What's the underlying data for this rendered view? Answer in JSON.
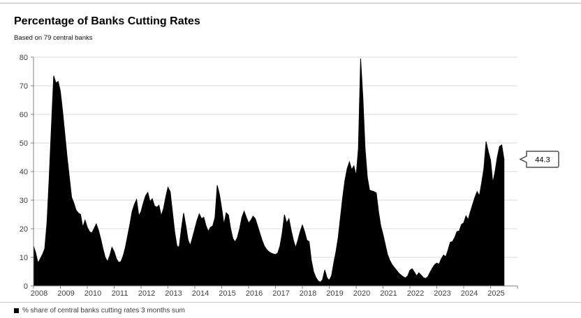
{
  "chart": {
    "title": "Percentage of Banks Cutting Rates",
    "subtitle": "Based on 79 central banks",
    "legend_label": "% share of central banks cutting rates 3 months sum",
    "callout_label": "44.3"
  },
  "colors": {
    "series": "#000000",
    "grid": "#d9d9d9",
    "axis": "#808080",
    "tick_text": "#404040",
    "callout_border": "#4d4d4d",
    "callout_bg": "#ffffff",
    "callout_text": "#000000"
  },
  "chart_data": {
    "type": "area",
    "title": "Percentage of Banks Cutting Rates",
    "subtitle": "Based on 79 central banks",
    "legend": [
      "% share of central banks cutting rates 3 months sum"
    ],
    "legend_position": "bottom-left",
    "grid": "horizontal",
    "x_start": "2008-01",
    "x_end": "2025-07",
    "frequency": "monthly",
    "x_tick_labels": [
      "2008",
      "2009",
      "2010",
      "2011",
      "2012",
      "2013",
      "2014",
      "2015",
      "2016",
      "2017",
      "2018",
      "2019",
      "2020",
      "2021",
      "2022",
      "2023",
      "2024",
      "2025"
    ],
    "ylim": [
      0,
      80
    ],
    "y_ticks": [
      0,
      10,
      20,
      30,
      40,
      50,
      60,
      70,
      80
    ],
    "annotation": {
      "label": "44.3",
      "value": 44.3,
      "position": "last-point"
    },
    "series": [
      {
        "name": "% share of central banks cutting rates 3 months sum",
        "color": "#000000",
        "values": [
          14,
          11.5,
          8,
          9.5,
          11,
          13,
          22,
          38,
          56,
          73.5,
          71,
          71.5,
          68,
          61,
          53,
          45,
          38,
          31,
          29,
          26.5,
          25.5,
          25,
          20.5,
          23,
          20.5,
          19,
          18.5,
          20,
          21.7,
          19.5,
          16.5,
          13,
          10,
          8.5,
          10.5,
          13.5,
          12,
          9.5,
          8.2,
          8.5,
          10.5,
          13.5,
          17.5,
          21.5,
          26,
          28.5,
          30.2,
          24.5,
          26,
          29,
          31.5,
          32.7,
          29.5,
          30.5,
          28,
          27.5,
          28.2,
          24.5,
          27,
          31,
          34.5,
          33,
          26,
          19,
          14,
          13.5,
          20,
          25.5,
          21,
          16,
          14.2,
          17,
          20,
          23,
          25.2,
          23.5,
          24,
          21,
          19.1,
          20.5,
          21,
          24,
          35.2,
          32,
          27,
          21.5,
          25.6,
          24.8,
          20,
          16.5,
          15.4,
          17,
          20,
          24,
          26.1,
          24,
          22,
          23,
          24.4,
          23.5,
          21,
          18.5,
          16,
          14,
          12.8,
          12,
          11.5,
          11.2,
          11,
          11.5,
          14,
          18.5,
          24.9,
          22,
          23.5,
          19.5,
          16,
          13.4,
          16,
          19,
          21.3,
          19,
          16,
          15.5,
          9,
          5,
          3,
          1.8,
          1.3,
          2.2,
          5.6,
          2.8,
          2,
          3.5,
          8,
          12,
          17,
          24,
          31,
          37,
          41,
          43.4,
          40.7,
          42,
          38.5,
          48,
          79.5,
          66,
          48,
          38,
          33.5,
          33.2,
          33,
          32.5,
          26,
          21,
          18,
          14.5,
          11,
          9,
          7.5,
          6.5,
          5.5,
          4.5,
          3.8,
          3.2,
          2.8,
          3.5,
          5.5,
          6,
          4.8,
          3.5,
          4.6,
          3.8,
          2.9,
          2.6,
          3.2,
          4.8,
          6.2,
          7.4,
          8,
          7.6,
          9.5,
          10.8,
          10.2,
          12.5,
          15.3,
          15.5,
          17,
          19,
          19.2,
          21.5,
          22,
          24.5,
          23.2,
          26,
          28.5,
          31,
          33,
          31.5,
          36,
          41,
          50.5,
          47,
          44,
          36,
          40,
          45,
          48.8,
          49.3,
          44.3
        ]
      }
    ]
  }
}
